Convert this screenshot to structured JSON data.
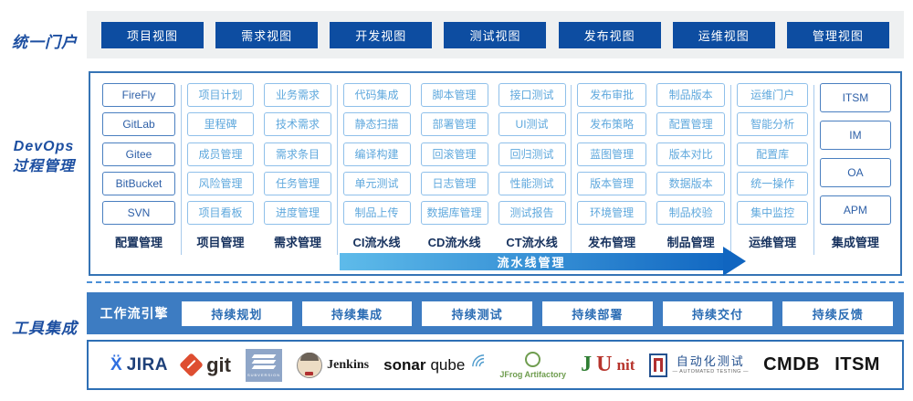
{
  "portal": {
    "label": "统一门户",
    "views": [
      "项目视图",
      "需求视图",
      "开发视图",
      "测试视图",
      "发布视图",
      "运维视图",
      "管理视图"
    ]
  },
  "devops": {
    "label_line1": "DevOps",
    "label_line2": "过程管理",
    "pipeline_arrow_label": "流水线管理",
    "groups": [
      {
        "columns": [
          {
            "title": "配置管理",
            "style": "dark",
            "items": [
              "FireFly",
              "GitLab",
              "Gitee",
              "BitBucket",
              "SVN"
            ]
          }
        ]
      },
      {
        "columns": [
          {
            "title": "项目管理",
            "style": "light",
            "items": [
              "项目计划",
              "里程碑",
              "成员管理",
              "风险管理",
              "项目看板"
            ]
          },
          {
            "title": "需求管理",
            "style": "light",
            "items": [
              "业务需求",
              "技术需求",
              "需求条目",
              "任务管理",
              "进度管理"
            ]
          }
        ]
      },
      {
        "columns": [
          {
            "title": "CI流水线",
            "style": "light",
            "items": [
              "代码集成",
              "静态扫描",
              "编译构建",
              "单元测试",
              "制品上传"
            ]
          },
          {
            "title": "CD流水线",
            "style": "light",
            "items": [
              "脚本管理",
              "部署管理",
              "回滚管理",
              "日志管理",
              "数据库管理"
            ]
          },
          {
            "title": "CT流水线",
            "style": "light",
            "items": [
              "接口测试",
              "UI测试",
              "回归测试",
              "性能测试",
              "测试报告"
            ]
          }
        ]
      },
      {
        "columns": [
          {
            "title": "发布管理",
            "style": "light",
            "items": [
              "发布审批",
              "发布策略",
              "蓝图管理",
              "版本管理",
              "环境管理"
            ]
          },
          {
            "title": "制品管理",
            "style": "light",
            "items": [
              "制品版本",
              "配置管理",
              "版本对比",
              "数据版本",
              "制品校验"
            ]
          }
        ]
      },
      {
        "columns": [
          {
            "title": "运维管理",
            "style": "light",
            "items": [
              "运维门户",
              "智能分析",
              "配置库",
              "统一操作",
              "集中监控"
            ]
          }
        ]
      },
      {
        "columns": [
          {
            "title": "集成管理",
            "style": "dark",
            "items": [
              "ITSM",
              "IM",
              "OA",
              "APM"
            ]
          }
        ]
      }
    ]
  },
  "tools": {
    "label": "工具集成",
    "workflow_engine_label": "工作流引擎",
    "stages": [
      "持续规划",
      "持续集成",
      "持续测试",
      "持续部署",
      "持续交付",
      "持续反馈"
    ],
    "logos": {
      "jira": {
        "mark": "Ẍ",
        "text": "JIRA"
      },
      "git": {
        "text": "git"
      },
      "subversion": {
        "text": "SUBVERSION"
      },
      "jenkins": {
        "text": "Jenkins"
      },
      "sonarqube": {
        "text_bold": "sonar",
        "text_light": "qube"
      },
      "jfrog": {
        "text": "JFrog Artifactory"
      },
      "junit": {
        "j": "J",
        "u": "U",
        "nit": "nit"
      },
      "automated_testing": {
        "text_cn": "自动化测试",
        "text_en": "— AUTOMATED TESTING —"
      },
      "cmdb": {
        "text": "CMDB"
      },
      "itsm": {
        "text": "ITSM"
      }
    }
  },
  "colors": {
    "portal_button_bg": "#0d4da1",
    "box_border": "#3674b5",
    "dark_item_text": "#2d5fa7",
    "light_item_border": "#8fc0ea",
    "group_title": "#17325e",
    "arrow_gradient_from": "#5ebbea",
    "arrow_gradient_to": "#1268c2",
    "workflow_bar_bg": "#3d7cc2",
    "side_label_text": "#1d4fa1"
  }
}
